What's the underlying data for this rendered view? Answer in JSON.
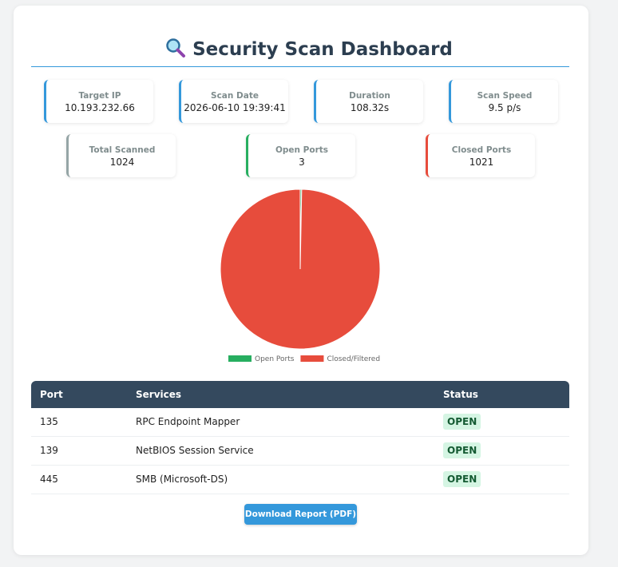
{
  "header": {
    "title": "Security Scan Dashboard"
  },
  "stats": [
    {
      "label": "Target IP",
      "value": "10.193.232.66",
      "color": "#3498db"
    },
    {
      "label": "Scan Date",
      "value": "2026-06-10 19:39:41",
      "color": "#3498db"
    },
    {
      "label": "Duration",
      "value": "108.32s",
      "color": "#3498db"
    },
    {
      "label": "Scan Speed",
      "value": "9.5 p/s",
      "color": "#3498db"
    },
    {
      "label": "Total Scanned",
      "value": 1024,
      "color": "#95a5a6"
    },
    {
      "label": "Open Ports",
      "value": 3,
      "color": "#27ae60"
    },
    {
      "label": "Closed Ports",
      "value": 1021,
      "color": "#e74c3c"
    }
  ],
  "chart_data": {
    "type": "pie",
    "categories": [
      "Open Ports",
      "Closed/Filtered"
    ],
    "values": [
      3,
      1021
    ],
    "colors": [
      "#27ae60",
      "#e74c3c"
    ]
  },
  "table": {
    "headers": [
      "Port",
      "Services",
      "Status"
    ],
    "rows": [
      [
        "135",
        "RPC Endpoint Mapper",
        "OPEN"
      ],
      [
        "139",
        "NetBIOS Session Service",
        "OPEN"
      ],
      [
        "445",
        "SMB (Microsoft-DS)",
        "OPEN"
      ]
    ]
  },
  "actions": {
    "download": "Download Report (PDF)"
  }
}
